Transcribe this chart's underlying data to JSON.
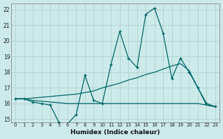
{
  "xlabel": "Humidex (Indice chaleur)",
  "xlim": [
    -0.5,
    23.5
  ],
  "ylim": [
    14.8,
    22.4
  ],
  "yticks": [
    15,
    16,
    17,
    18,
    19,
    20,
    21,
    22
  ],
  "xticks": [
    0,
    1,
    2,
    3,
    4,
    5,
    6,
    7,
    8,
    9,
    10,
    11,
    12,
    13,
    14,
    15,
    16,
    17,
    18,
    19,
    20,
    21,
    22,
    23
  ],
  "background_color": "#cdeaea",
  "line_color": "#006666",
  "grid_color": "#aacccc",
  "line1_x": [
    0,
    1,
    2,
    3,
    4,
    5,
    6,
    7,
    8,
    9,
    10,
    11,
    12,
    13,
    14,
    15,
    16,
    17,
    18,
    19,
    20,
    21,
    22,
    23
  ],
  "line1_y": [
    16.3,
    16.3,
    16.1,
    16.0,
    15.9,
    14.8,
    14.7,
    15.3,
    17.8,
    16.2,
    16.0,
    18.5,
    20.6,
    18.9,
    18.3,
    21.7,
    22.1,
    20.5,
    17.6,
    18.9,
    18.0,
    17.0,
    16.0,
    15.8
  ],
  "line2_x": [
    0,
    1,
    2,
    3,
    4,
    5,
    6,
    7,
    8,
    9,
    10,
    11,
    12,
    13,
    14,
    15,
    16,
    17,
    18,
    19,
    20,
    21,
    22,
    23
  ],
  "line2_y": [
    16.3,
    16.3,
    16.2,
    16.15,
    16.1,
    16.05,
    16.0,
    16.0,
    16.0,
    16.0,
    16.0,
    16.0,
    16.0,
    16.0,
    16.0,
    16.0,
    16.0,
    16.0,
    16.0,
    16.0,
    16.0,
    16.0,
    15.9,
    15.8
  ],
  "line3_x": [
    0,
    1,
    2,
    3,
    4,
    5,
    6,
    7,
    8,
    9,
    10,
    11,
    12,
    13,
    14,
    15,
    16,
    17,
    18,
    19,
    20,
    21,
    22,
    23
  ],
  "line3_y": [
    16.3,
    16.3,
    16.35,
    16.4,
    16.45,
    16.5,
    16.55,
    16.6,
    16.7,
    16.8,
    17.0,
    17.15,
    17.3,
    17.5,
    17.65,
    17.85,
    18.0,
    18.2,
    18.4,
    18.55,
    18.1,
    17.0,
    15.9,
    15.8
  ]
}
